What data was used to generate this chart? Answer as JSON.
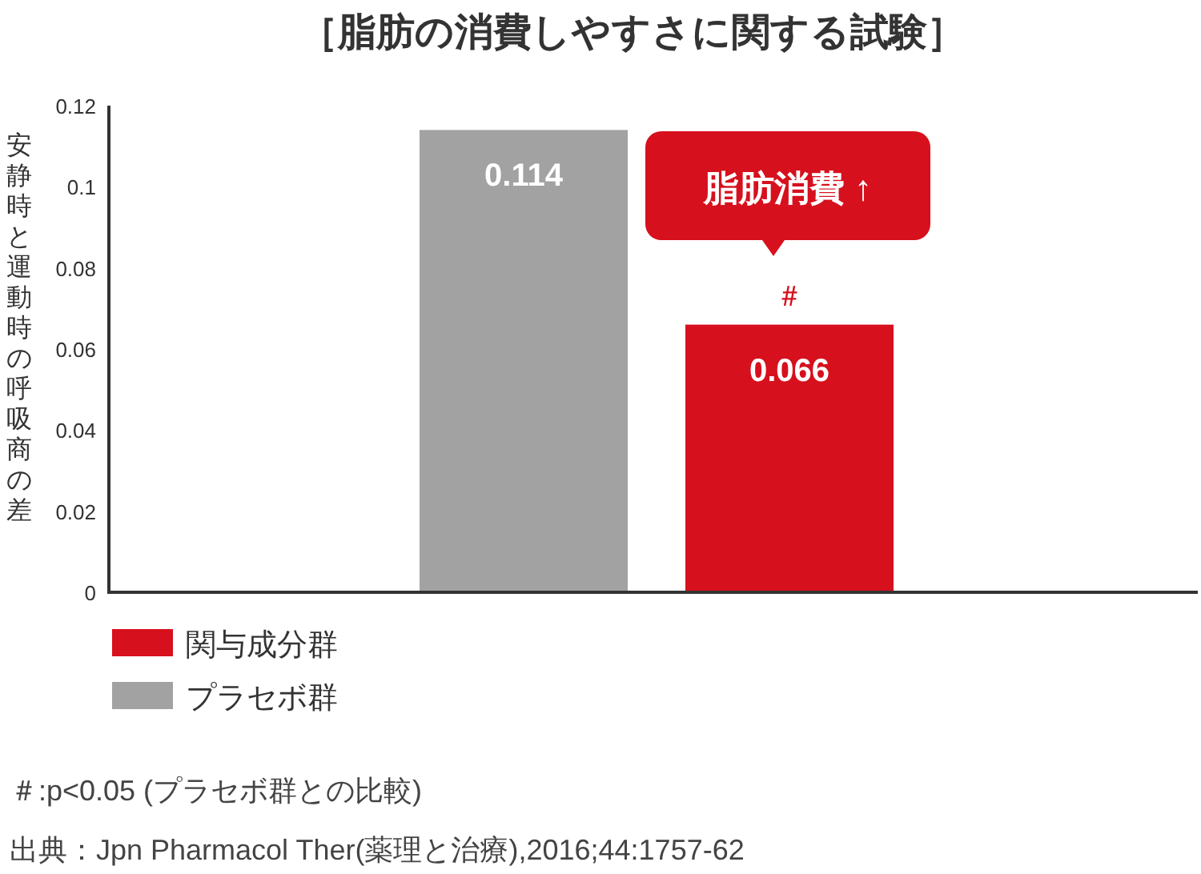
{
  "chart_data": {
    "type": "bar",
    "title": "［脂肪の消費しやすさに関する試験］",
    "ylabel": "安静時と運動時の呼吸商の差",
    "categories": [
      null,
      null
    ],
    "series": [
      {
        "name": "関与成分群",
        "color": "#d7101d",
        "values": [
          null,
          0.066
        ]
      },
      {
        "name": "プラセボ群",
        "color": "#a2a2a2",
        "values": [
          0.114,
          null
        ]
      }
    ],
    "ylim": [
      0,
      0.12
    ],
    "yticks": [
      0,
      0.02,
      0.04,
      0.06,
      0.08,
      0.1,
      0.12
    ],
    "data_labels": true,
    "grid": false,
    "legend": "bottom left",
    "annotations": [
      "脂肪消費 ↑",
      "＃",
      "＃:p<0.05 (プラセボ群との比較)",
      "出典：Jpn Pharmacol Ther(薬理と治療),2016;44:1757-62"
    ]
  }
}
